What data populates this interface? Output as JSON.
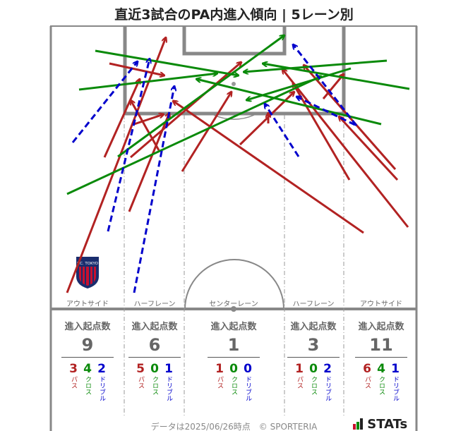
{
  "title": "直近3試合のPA内進入傾向 | 5レーン別",
  "colors": {
    "pass": "#b22222",
    "cross": "#0a8a0a",
    "dribble": "#0000cc",
    "pitch_line": "#888888"
  },
  "legend_labels": {
    "pass": "パス",
    "cross": "クロス",
    "dribble": "ドリブル"
  },
  "lanes": [
    {
      "label": "アウトサイド",
      "header": "進入起点数",
      "total": "9",
      "pass": "3",
      "cross": "4",
      "dribble": "2"
    },
    {
      "label": "ハーフレーン",
      "header": "進入起点数",
      "total": "6",
      "pass": "5",
      "cross": "0",
      "dribble": "1"
    },
    {
      "label": "センターレーン",
      "header": "進入起点数",
      "total": "1",
      "pass": "1",
      "cross": "0",
      "dribble": "0"
    },
    {
      "label": "ハーフレーン",
      "header": "進入起点数",
      "total": "3",
      "pass": "1",
      "cross": "0",
      "dribble": "2"
    },
    {
      "label": "アウトサイド",
      "header": "進入起点数",
      "total": "11",
      "pass": "6",
      "cross": "4",
      "dribble": "1"
    }
  ],
  "team_logo_text": "F.C. TOKYO",
  "footer": "データは2025/06/26時点　© SPORTERIA",
  "brand": "STATs"
}
